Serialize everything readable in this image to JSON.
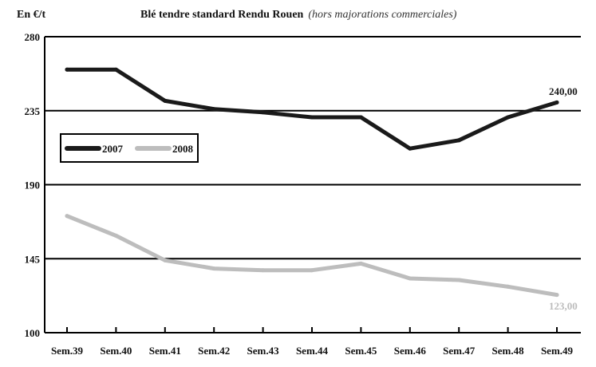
{
  "chart_data": {
    "type": "line",
    "unit_label": "En €/t",
    "title": "Blé tendre standard Rendu Rouen",
    "subtitle": "(hors majorations commerciales)",
    "categories": [
      "Sem.39",
      "Sem.40",
      "Sem.41",
      "Sem.42",
      "Sem.43",
      "Sem.44",
      "Sem.45",
      "Sem.46",
      "Sem.47",
      "Sem.48",
      "Sem.49"
    ],
    "ylim": [
      100,
      280
    ],
    "yticks": [
      100,
      145,
      190,
      235,
      280
    ],
    "grid": "horizontal",
    "legend_position": "top-left",
    "series": [
      {
        "name": "2007",
        "color": "#1a1a1a",
        "values": [
          260,
          260,
          241,
          236,
          234,
          231,
          231,
          212,
          217,
          231,
          240
        ],
        "end_label": "240,00"
      },
      {
        "name": "2008",
        "color": "#bdbdbd",
        "values": [
          171,
          159,
          144,
          139,
          138,
          138,
          142,
          133,
          132,
          128,
          123
        ],
        "end_label": "123,00"
      }
    ]
  }
}
